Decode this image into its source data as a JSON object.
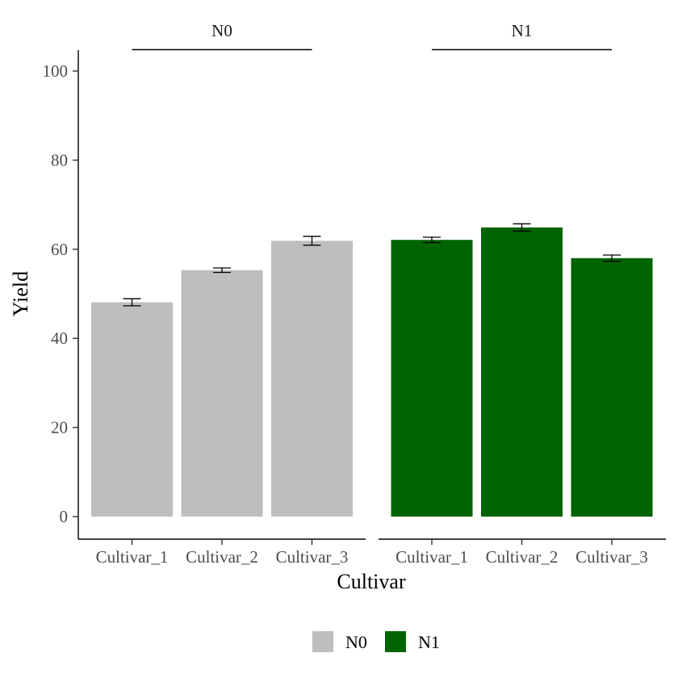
{
  "chart_data": {
    "type": "bar",
    "categories": [
      "Cultivar_1",
      "Cultivar_2",
      "Cultivar_3"
    ],
    "xlabel": "Cultivar",
    "ylabel": "Yield",
    "ylim": [
      0,
      105
    ],
    "yticks": [
      0,
      20,
      40,
      60,
      80,
      100
    ],
    "grid": false,
    "legend_position": "bottom",
    "series": [
      {
        "name": "N0",
        "color": "#bebebe",
        "values": [
          48.1,
          55.3,
          61.9
        ],
        "errors": [
          0.8,
          0.5,
          1.0
        ]
      },
      {
        "name": "N1",
        "color": "#006400",
        "values": [
          62.1,
          64.9,
          58.0
        ],
        "errors": [
          0.6,
          0.8,
          0.7
        ]
      }
    ]
  }
}
